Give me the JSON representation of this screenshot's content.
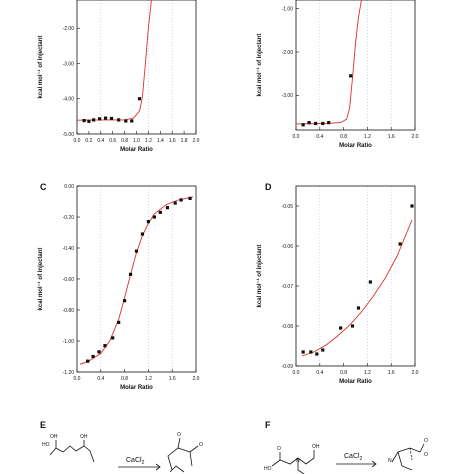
{
  "panels": {
    "A": {
      "letter": ""
    },
    "B": {
      "letter": ""
    },
    "C": {
      "letter": "C"
    },
    "D": {
      "letter": "D"
    },
    "E": {
      "letter": "E",
      "reagent": "CaCl",
      "reagent_sub": "2",
      "labels": [
        "HO",
        "OH",
        "OH",
        "O",
        "O"
      ]
    },
    "F": {
      "letter": "F",
      "reagent": "CaCl",
      "reagent_sub": "2",
      "labels": [
        "O",
        "HO",
        "N",
        "OH",
        "O",
        "N",
        "O"
      ]
    }
  },
  "chart_data": [
    {
      "panel": "A",
      "type": "scatter",
      "title": "",
      "xlabel": "Molar Ratio",
      "ylabel": "kcal mol⁻¹ of injectant",
      "xlim": [
        0.0,
        2.0
      ],
      "ylim": [
        -5.0,
        -1.2
      ],
      "xticks": [
        "0.0",
        "0.2",
        "0.4",
        "0.6",
        "0.8",
        "1.0",
        "1.2",
        "1.4",
        "1.6",
        "1.8",
        "2.0"
      ],
      "yticks": [
        {
          "v": -2.0,
          "label": "-2.00"
        },
        {
          "v": -3.0,
          "label": "-3.00"
        },
        {
          "v": -4.0,
          "label": "-4.00"
        },
        {
          "v": -5.0,
          "label": "-5.00"
        }
      ],
      "points": {
        "x": [
          0.12,
          0.2,
          0.28,
          0.38,
          0.48,
          0.58,
          0.7,
          0.82,
          0.92,
          1.05
        ],
        "y": [
          -4.62,
          -4.64,
          -4.6,
          -4.57,
          -4.55,
          -4.56,
          -4.6,
          -4.63,
          -4.63,
          -4.0
        ]
      },
      "fit": {
        "x": [
          0.0,
          0.5,
          0.8,
          0.95,
          1.05,
          1.1,
          1.15,
          1.2,
          1.25
        ],
        "y": [
          -4.61,
          -4.6,
          -4.6,
          -4.55,
          -4.35,
          -3.95,
          -3.0,
          -2.0,
          -1.2
        ]
      }
    },
    {
      "panel": "B",
      "type": "scatter",
      "title": "",
      "xlabel": "Molar Ratio",
      "ylabel": "kcal mol⁻¹ of injectant",
      "xlim": [
        0.0,
        2.0
      ],
      "ylim": [
        -3.8,
        -0.8
      ],
      "xticks": [
        "0.0",
        "0.4",
        "0.8",
        "1.2",
        "1.6",
        "2.0"
      ],
      "yticks": [
        {
          "v": -1.0,
          "label": "-1.00"
        },
        {
          "v": -2.0,
          "label": "-2.00"
        },
        {
          "v": -3.0,
          "label": "-3.00"
        }
      ],
      "points": {
        "x": [
          0.12,
          0.22,
          0.33,
          0.45,
          0.55,
          0.92
        ],
        "y": [
          -3.68,
          -3.63,
          -3.65,
          -3.65,
          -3.63,
          -2.55
        ]
      },
      "fit": {
        "x": [
          0.0,
          0.5,
          0.75,
          0.85,
          0.9,
          0.95,
          1.0,
          1.05,
          1.1
        ],
        "y": [
          -3.66,
          -3.65,
          -3.63,
          -3.55,
          -3.3,
          -2.6,
          -1.8,
          -1.2,
          -0.8
        ]
      }
    },
    {
      "panel": "C",
      "type": "scatter",
      "title": "",
      "xlabel": "Molar Ratio",
      "ylabel": "kcal mol⁻¹ of injectant",
      "xlim": [
        0.0,
        2.0
      ],
      "ylim": [
        -1.2,
        0.0
      ],
      "xticks": [
        "0.0",
        "0.4",
        "0.8",
        "1.2",
        "1.6",
        "2.0"
      ],
      "yticks": [
        {
          "v": 0.0,
          "label": "0.00"
        },
        {
          "v": -0.2,
          "label": "-0.20"
        },
        {
          "v": -0.4,
          "label": "-0.40"
        },
        {
          "v": -0.6,
          "label": "-0.60"
        },
        {
          "v": -0.8,
          "label": "-0.80"
        },
        {
          "v": -1.0,
          "label": "-1.00"
        },
        {
          "v": -1.2,
          "label": "-1.20"
        }
      ],
      "points": {
        "x": [
          0.18,
          0.27,
          0.37,
          0.47,
          0.6,
          0.7,
          0.8,
          0.9,
          1.0,
          1.1,
          1.2,
          1.3,
          1.4,
          1.52,
          1.65,
          1.75,
          1.9
        ],
        "y": [
          -1.13,
          -1.1,
          -1.07,
          -1.03,
          -0.98,
          -0.88,
          -0.74,
          -0.57,
          -0.42,
          -0.31,
          -0.23,
          -0.2,
          -0.17,
          -0.14,
          -0.11,
          -0.09,
          -0.08
        ]
      },
      "fit": {
        "x": [
          0.05,
          0.2,
          0.4,
          0.55,
          0.7,
          0.8,
          0.9,
          1.0,
          1.1,
          1.2,
          1.3,
          1.5,
          1.7,
          1.95
        ],
        "y": [
          -1.15,
          -1.13,
          -1.08,
          -1.0,
          -0.86,
          -0.72,
          -0.57,
          -0.43,
          -0.32,
          -0.24,
          -0.18,
          -0.12,
          -0.09,
          -0.07
        ]
      }
    },
    {
      "panel": "D",
      "type": "scatter",
      "title": "",
      "xlabel": "Molar Ratio",
      "ylabel": "kcal mol⁻¹ of injectant",
      "xlim": [
        0.0,
        2.0
      ],
      "ylim": [
        -0.09,
        -0.045
      ],
      "xticks": [
        "0.0",
        "0.4",
        "0.8",
        "1.2",
        "1.6",
        "2.0"
      ],
      "yticks": [
        {
          "v": -0.05,
          "label": "-0.05"
        },
        {
          "v": -0.06,
          "label": "-0.06"
        },
        {
          "v": -0.07,
          "label": "-0.07"
        },
        {
          "v": -0.08,
          "label": "-0.08"
        },
        {
          "v": -0.09,
          "label": "-0.09"
        }
      ],
      "points": {
        "x": [
          0.12,
          0.25,
          0.35,
          0.45,
          0.75,
          0.95,
          1.05,
          1.25,
          1.75,
          1.95
        ],
        "y": [
          -0.0865,
          -0.0865,
          -0.087,
          -0.086,
          -0.0805,
          -0.08,
          -0.0755,
          -0.069,
          -0.0595,
          -0.05
        ]
      },
      "fit": {
        "x": [
          0.1,
          0.3,
          0.5,
          0.7,
          0.9,
          1.1,
          1.3,
          1.5,
          1.7,
          1.95
        ],
        "y": [
          -0.0875,
          -0.0865,
          -0.0848,
          -0.0825,
          -0.0798,
          -0.0765,
          -0.0725,
          -0.068,
          -0.0625,
          -0.0535
        ]
      }
    }
  ]
}
